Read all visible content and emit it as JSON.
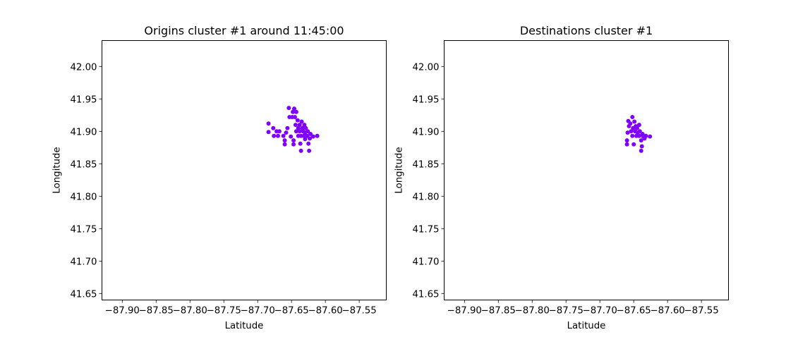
{
  "chart_data": [
    {
      "type": "scatter",
      "title": "Origins cluster #1 around 11:45:00",
      "xlabel": "Latitude",
      "ylabel": "Longitude",
      "xlim": [
        -87.93,
        -87.51
      ],
      "ylim": [
        41.64,
        42.04
      ],
      "xticks": [
        -87.9,
        -87.85,
        -87.8,
        -87.75,
        -87.7,
        -87.65,
        -87.6,
        -87.55
      ],
      "xtick_labels": [
        "−87.90",
        "−87.85",
        "−87.80",
        "−87.75",
        "−87.70",
        "−87.65",
        "−87.60",
        "−87.55"
      ],
      "yticks": [
        41.65,
        41.7,
        41.75,
        41.8,
        41.85,
        41.9,
        41.95,
        42.0
      ],
      "ytick_labels": [
        "41.65",
        "41.70",
        "41.75",
        "41.80",
        "41.85",
        "41.90",
        "41.95",
        "42.00"
      ],
      "grid": false,
      "marker_color": "#8000ff",
      "points": [
        [
          -87.684,
          41.912
        ],
        [
          -87.684,
          41.899
        ],
        [
          -87.677,
          41.905
        ],
        [
          -87.676,
          41.893
        ],
        [
          -87.672,
          41.9
        ],
        [
          -87.67,
          41.893
        ],
        [
          -87.668,
          41.9
        ],
        [
          -87.662,
          41.893
        ],
        [
          -87.66,
          41.88
        ],
        [
          -87.66,
          41.886
        ],
        [
          -87.658,
          41.898
        ],
        [
          -87.656,
          41.905
        ],
        [
          -87.654,
          41.936
        ],
        [
          -87.653,
          41.922
        ],
        [
          -87.651,
          41.892
        ],
        [
          -87.649,
          41.922
        ],
        [
          -87.648,
          41.93
        ],
        [
          -87.647,
          41.88
        ],
        [
          -87.647,
          41.886
        ],
        [
          -87.646,
          41.935
        ],
        [
          -87.645,
          41.922
        ],
        [
          -87.644,
          41.91
        ],
        [
          -87.643,
          41.9
        ],
        [
          -87.643,
          41.93
        ],
        [
          -87.641,
          41.917
        ],
        [
          -87.64,
          41.893
        ],
        [
          -87.64,
          41.905
        ],
        [
          -87.638,
          41.9
        ],
        [
          -87.638,
          41.91
        ],
        [
          -87.637,
          41.881
        ],
        [
          -87.636,
          41.87
        ],
        [
          -87.636,
          41.893
        ],
        [
          -87.635,
          41.915
        ],
        [
          -87.634,
          41.905
        ],
        [
          -87.633,
          41.9
        ],
        [
          -87.632,
          41.893
        ],
        [
          -87.631,
          41.91
        ],
        [
          -87.63,
          41.888
        ],
        [
          -87.63,
          41.898
        ],
        [
          -87.629,
          41.905
        ],
        [
          -87.627,
          41.893
        ],
        [
          -87.626,
          41.9
        ],
        [
          -87.625,
          41.881
        ],
        [
          -87.624,
          41.87
        ],
        [
          -87.623,
          41.889
        ],
        [
          -87.622,
          41.896
        ],
        [
          -87.618,
          41.892
        ],
        [
          -87.612,
          41.893
        ]
      ]
    },
    {
      "type": "scatter",
      "title": "Destinations cluster #1",
      "xlabel": "Latitude",
      "ylabel": "Longitude",
      "xlim": [
        -87.93,
        -87.51
      ],
      "ylim": [
        41.64,
        42.04
      ],
      "xticks": [
        -87.9,
        -87.85,
        -87.8,
        -87.75,
        -87.7,
        -87.65,
        -87.6,
        -87.55
      ],
      "xtick_labels": [
        "−87.90",
        "−87.85",
        "−87.80",
        "−87.75",
        "−87.70",
        "−87.65",
        "−87.60",
        "−87.55"
      ],
      "yticks": [
        41.65,
        41.7,
        41.75,
        41.8,
        41.85,
        41.9,
        41.95,
        42.0
      ],
      "ytick_labels": [
        "41.65",
        "41.70",
        "41.75",
        "41.80",
        "41.85",
        "41.90",
        "41.95",
        "42.00"
      ],
      "grid": false,
      "marker_color": "#8000ff",
      "points": [
        [
          -87.66,
          41.88
        ],
        [
          -87.66,
          41.886
        ],
        [
          -87.659,
          41.898
        ],
        [
          -87.658,
          41.916
        ],
        [
          -87.657,
          41.908
        ],
        [
          -87.655,
          41.912
        ],
        [
          -87.654,
          41.9
        ],
        [
          -87.652,
          41.922
        ],
        [
          -87.652,
          41.893
        ],
        [
          -87.651,
          41.905
        ],
        [
          -87.65,
          41.88
        ],
        [
          -87.649,
          41.915
        ],
        [
          -87.648,
          41.9
        ],
        [
          -87.647,
          41.908
        ],
        [
          -87.646,
          41.893
        ],
        [
          -87.645,
          41.905
        ],
        [
          -87.644,
          41.898
        ],
        [
          -87.642,
          41.893
        ],
        [
          -87.642,
          41.91
        ],
        [
          -87.641,
          41.9
        ],
        [
          -87.639,
          41.87
        ],
        [
          -87.639,
          41.886
        ],
        [
          -87.638,
          41.877
        ],
        [
          -87.637,
          41.896
        ],
        [
          -87.636,
          41.892
        ],
        [
          -87.634,
          41.889
        ],
        [
          -87.632,
          41.893
        ],
        [
          -87.626,
          41.892
        ]
      ]
    }
  ]
}
